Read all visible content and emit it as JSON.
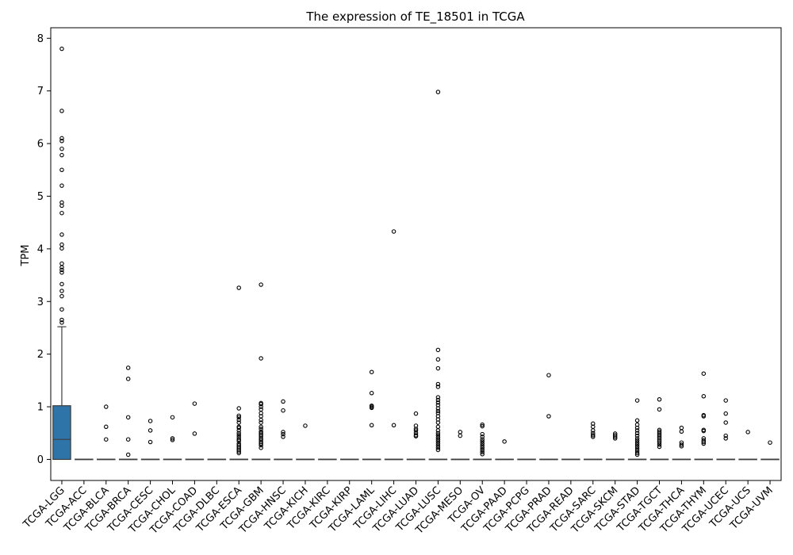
{
  "chart_data": {
    "type": "box",
    "title": "The expression of TE_18501 in TCGA",
    "xlabel": "",
    "ylabel": "TPM",
    "ylim": [
      -0.4,
      8.2
    ],
    "yticks": [
      0,
      1,
      2,
      3,
      4,
      5,
      6,
      7,
      8
    ],
    "box_color": "#2e74a8",
    "categories": [
      "TCGA-LGG",
      "TCGA-ACC",
      "TCGA-BLCA",
      "TCGA-BRCA",
      "TCGA-CESC",
      "TCGA-CHOL",
      "TCGA-COAD",
      "TCGA-DLBC",
      "TCGA-ESCA",
      "TCGA-GBM",
      "TCGA-HNSC",
      "TCGA-KICH",
      "TCGA-KIRC",
      "TCGA-KIRP",
      "TCGA-LAML",
      "TCGA-LIHC",
      "TCGA-LUAD",
      "TCGA-LUSC",
      "TCGA-MESO",
      "TCGA-OV",
      "TCGA-PAAD",
      "TCGA-PCPG",
      "TCGA-PRAD",
      "TCGA-READ",
      "TCGA-SARC",
      "TCGA-SKCM",
      "TCGA-STAD",
      "TCGA-TGCT",
      "TCGA-THCA",
      "TCGA-THYM",
      "TCGA-UCEC",
      "TCGA-UCS",
      "TCGA-UVM"
    ],
    "boxes": [
      {
        "q1": 0,
        "median": 0.38,
        "q3": 1.02,
        "whisker_low": 0,
        "whisker_high": 2.52,
        "outliers": [
          7.8,
          6.62,
          6.1,
          6.05,
          5.9,
          5.78,
          5.5,
          5.2,
          4.88,
          4.82,
          4.68,
          4.27,
          4.08,
          4.01,
          3.72,
          3.65,
          3.6,
          3.55,
          3.33,
          3.2,
          3.1,
          2.85,
          2.65,
          2.6
        ]
      },
      {
        "q1": 0,
        "median": 0,
        "q3": 0,
        "whisker_low": 0,
        "whisker_high": 0,
        "outliers": []
      },
      {
        "q1": 0,
        "median": 0,
        "q3": 0,
        "whisker_low": 0,
        "whisker_high": 0,
        "outliers": [
          1.0,
          0.62,
          0.38
        ]
      },
      {
        "q1": 0,
        "median": 0,
        "q3": 0,
        "whisker_low": 0,
        "whisker_high": 0,
        "outliers": [
          1.74,
          1.53,
          0.8,
          0.38,
          0.09
        ]
      },
      {
        "q1": 0,
        "median": 0,
        "q3": 0,
        "whisker_low": 0,
        "whisker_high": 0,
        "outliers": [
          0.73,
          0.55,
          0.33
        ]
      },
      {
        "q1": 0,
        "median": 0,
        "q3": 0,
        "whisker_low": 0,
        "whisker_high": 0,
        "outliers": [
          0.8,
          0.4,
          0.37
        ]
      },
      {
        "q1": 0,
        "median": 0,
        "q3": 0,
        "whisker_low": 0,
        "whisker_high": 0,
        "outliers": [
          1.06,
          0.49
        ]
      },
      {
        "q1": 0,
        "median": 0,
        "q3": 0,
        "whisker_low": 0,
        "whisker_high": 0,
        "outliers": []
      },
      {
        "q1": 0,
        "median": 0,
        "q3": 0,
        "whisker_low": 0,
        "whisker_high": 0,
        "outliers": [
          3.26,
          0.97,
          0.83,
          0.8,
          0.75,
          0.7,
          0.62,
          0.6,
          0.55,
          0.5,
          0.46,
          0.42,
          0.38,
          0.35,
          0.3,
          0.27,
          0.24,
          0.21,
          0.18,
          0.15,
          0.12
        ]
      },
      {
        "q1": 0,
        "median": 0,
        "q3": 0,
        "whisker_low": 0,
        "whisker_high": 0,
        "outliers": [
          3.32,
          1.92,
          1.07,
          1.05,
          1.0,
          0.95,
          0.88,
          0.82,
          0.75,
          0.7,
          0.62,
          0.58,
          0.53,
          0.5,
          0.47,
          0.44,
          0.4,
          0.37,
          0.33,
          0.3,
          0.27,
          0.22
        ]
      },
      {
        "q1": 0,
        "median": 0,
        "q3": 0,
        "whisker_low": 0,
        "whisker_high": 0,
        "outliers": [
          1.1,
          0.93,
          0.52,
          0.48,
          0.43
        ]
      },
      {
        "q1": 0,
        "median": 0,
        "q3": 0,
        "whisker_low": 0,
        "whisker_high": 0,
        "outliers": [
          0.64
        ]
      },
      {
        "q1": 0,
        "median": 0,
        "q3": 0,
        "whisker_low": 0,
        "whisker_high": 0,
        "outliers": []
      },
      {
        "q1": 0,
        "median": 0,
        "q3": 0,
        "whisker_low": 0,
        "whisker_high": 0,
        "outliers": []
      },
      {
        "q1": 0,
        "median": 0,
        "q3": 0,
        "whisker_low": 0,
        "whisker_high": 0,
        "outliers": [
          1.66,
          1.26,
          1.02,
          1.0,
          0.98,
          0.65
        ]
      },
      {
        "q1": 0,
        "median": 0,
        "q3": 0,
        "whisker_low": 0,
        "whisker_high": 0,
        "outliers": [
          4.33,
          0.65
        ]
      },
      {
        "q1": 0,
        "median": 0,
        "q3": 0,
        "whisker_low": 0,
        "whisker_high": 0,
        "outliers": [
          0.87,
          0.64,
          0.58,
          0.55,
          0.5,
          0.46,
          0.44
        ]
      },
      {
        "q1": 0,
        "median": 0,
        "q3": 0,
        "whisker_low": 0,
        "whisker_high": 0,
        "outliers": [
          6.98,
          2.08,
          1.9,
          1.73,
          1.43,
          1.38,
          1.18,
          1.13,
          1.08,
          1.03,
          0.97,
          0.92,
          0.88,
          0.82,
          0.76,
          0.7,
          0.62,
          0.55,
          0.5,
          0.46,
          0.42,
          0.38,
          0.34,
          0.3,
          0.26,
          0.22,
          0.18
        ]
      },
      {
        "q1": 0,
        "median": 0,
        "q3": 0,
        "whisker_low": 0,
        "whisker_high": 0,
        "outliers": [
          0.52,
          0.45
        ]
      },
      {
        "q1": 0,
        "median": 0,
        "q3": 0,
        "whisker_low": 0,
        "whisker_high": 0,
        "outliers": [
          0.66,
          0.63,
          0.48,
          0.43,
          0.38,
          0.34,
          0.3,
          0.26,
          0.22,
          0.18,
          0.14,
          0.1
        ]
      },
      {
        "q1": 0,
        "median": 0,
        "q3": 0,
        "whisker_low": 0,
        "whisker_high": 0,
        "outliers": [
          0.34
        ]
      },
      {
        "q1": 0,
        "median": 0,
        "q3": 0,
        "whisker_low": 0,
        "whisker_high": 0,
        "outliers": []
      },
      {
        "q1": 0,
        "median": 0,
        "q3": 0,
        "whisker_low": 0,
        "whisker_high": 0,
        "outliers": [
          1.6,
          0.82
        ]
      },
      {
        "q1": 0,
        "median": 0,
        "q3": 0,
        "whisker_low": 0,
        "whisker_high": 0,
        "outliers": []
      },
      {
        "q1": 0,
        "median": 0,
        "q3": 0,
        "whisker_low": 0,
        "whisker_high": 0,
        "outliers": [
          0.68,
          0.62,
          0.55,
          0.5,
          0.46,
          0.43
        ]
      },
      {
        "q1": 0,
        "median": 0,
        "q3": 0,
        "whisker_low": 0,
        "whisker_high": 0,
        "outliers": [
          0.49,
          0.46,
          0.43,
          0.4
        ]
      },
      {
        "q1": 0,
        "median": 0,
        "q3": 0,
        "whisker_low": 0,
        "whisker_high": 0,
        "outliers": [
          1.12,
          0.74,
          0.66,
          0.6,
          0.55,
          0.5,
          0.45,
          0.4,
          0.36,
          0.32,
          0.28,
          0.24,
          0.2,
          0.16,
          0.12,
          0.09
        ]
      },
      {
        "q1": 0,
        "median": 0,
        "q3": 0,
        "whisker_low": 0,
        "whisker_high": 0,
        "outliers": [
          1.14,
          0.95,
          0.56,
          0.53,
          0.5,
          0.47,
          0.44,
          0.41,
          0.38,
          0.35,
          0.32,
          0.28,
          0.24
        ]
      },
      {
        "q1": 0,
        "median": 0,
        "q3": 0,
        "whisker_low": 0,
        "whisker_high": 0,
        "outliers": [
          0.6,
          0.53,
          0.32,
          0.28,
          0.25
        ]
      },
      {
        "q1": 0,
        "median": 0,
        "q3": 0,
        "whisker_low": 0,
        "whisker_high": 0,
        "outliers": [
          1.63,
          1.2,
          0.84,
          0.82,
          0.56,
          0.54,
          0.4,
          0.36,
          0.33,
          0.3
        ]
      },
      {
        "q1": 0,
        "median": 0,
        "q3": 0,
        "whisker_low": 0,
        "whisker_high": 0,
        "outliers": [
          1.12,
          0.87,
          0.7,
          0.45,
          0.4
        ]
      },
      {
        "q1": 0,
        "median": 0,
        "q3": 0,
        "whisker_low": 0,
        "whisker_high": 0,
        "outliers": [
          0.52
        ]
      },
      {
        "q1": 0,
        "median": 0,
        "q3": 0,
        "whisker_low": 0,
        "whisker_high": 0,
        "outliers": [
          0.32
        ]
      }
    ]
  }
}
